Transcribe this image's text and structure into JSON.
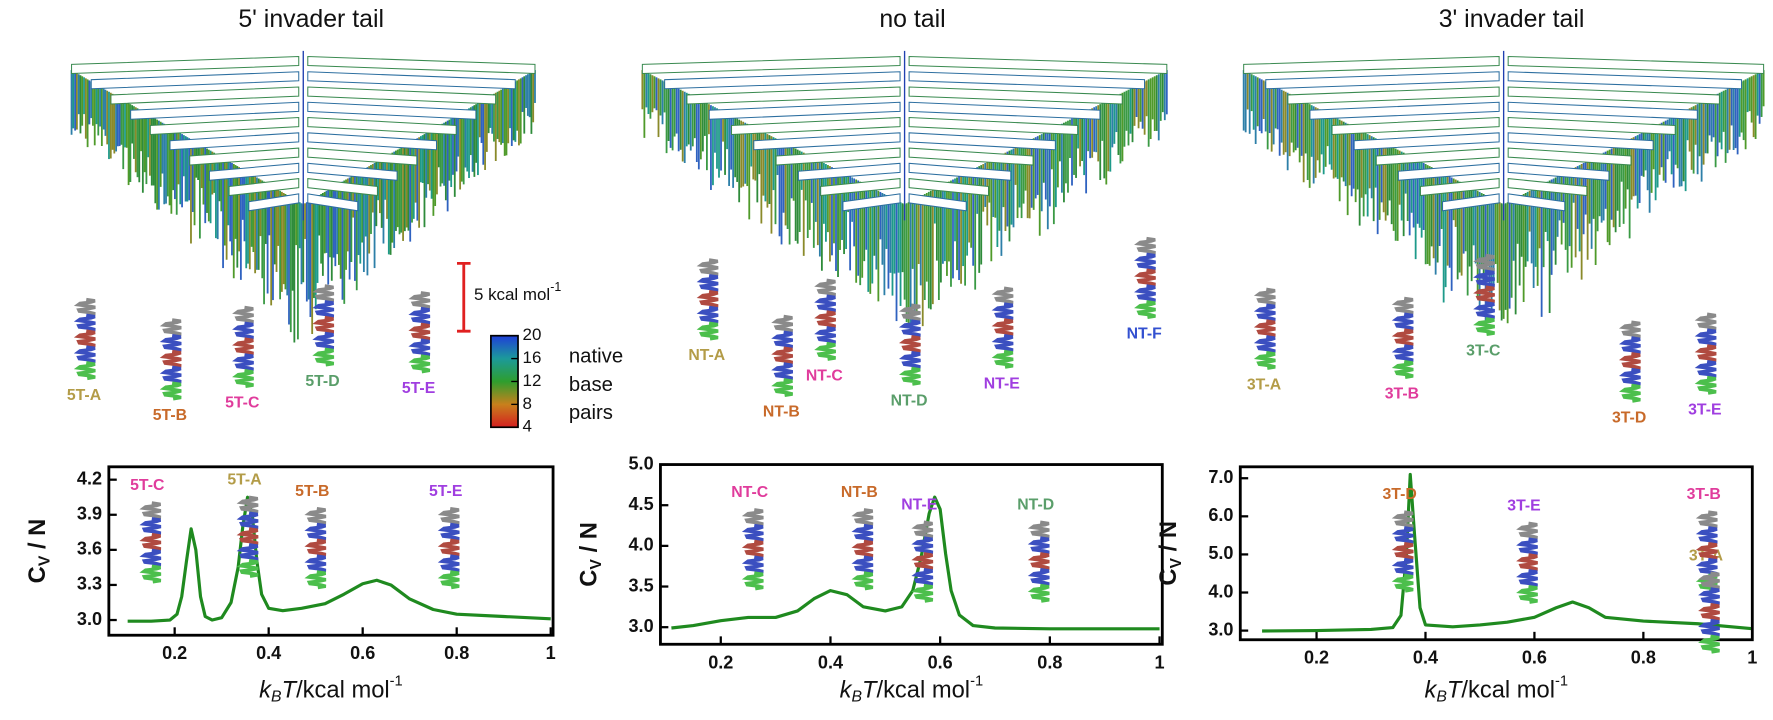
{
  "chart_data": [
    {
      "type": "line",
      "title": "5' invader tail",
      "color": "#1f8a1f",
      "x": [
        0.1,
        0.15,
        0.19,
        0.205,
        0.215,
        0.225,
        0.235,
        0.245,
        0.255,
        0.265,
        0.28,
        0.3,
        0.32,
        0.335,
        0.345,
        0.355,
        0.365,
        0.375,
        0.385,
        0.4,
        0.43,
        0.47,
        0.52,
        0.56,
        0.6,
        0.63,
        0.66,
        0.7,
        0.75,
        0.8,
        0.9,
        1.0
      ],
      "values": [
        2.99,
        2.99,
        3.0,
        3.05,
        3.2,
        3.5,
        3.78,
        3.6,
        3.2,
        3.03,
        3.0,
        3.02,
        3.15,
        3.45,
        3.8,
        4.05,
        3.9,
        3.5,
        3.22,
        3.1,
        3.08,
        3.1,
        3.14,
        3.22,
        3.31,
        3.34,
        3.3,
        3.18,
        3.09,
        3.05,
        3.03,
        3.01
      ],
      "xlim": [
        0.06,
        1.005
      ],
      "ylim": [
        2.87,
        4.31
      ],
      "xticks": [
        0.2,
        0.4,
        0.6,
        0.8,
        1
      ],
      "yticks": [
        {
          "value": 3.0,
          "label": "3.0"
        },
        3.3,
        3.6,
        3.9,
        4.2
      ],
      "x_label": [
        "k",
        "B",
        "T",
        "/kcal mol",
        "-1"
      ],
      "y_label": [
        "C",
        "V",
        " / N"
      ],
      "annotations": [
        {
          "text": "5T-C",
          "color": "#e03c9c"
        },
        {
          "text": "5T-A",
          "color": "#b39c48"
        },
        {
          "text": "5T-B",
          "color": "#c86a2a"
        },
        {
          "text": "5T-E",
          "color": "#a03ee0"
        }
      ],
      "structures": [
        {
          "text": "5T-A",
          "color": "#b39c48"
        },
        {
          "text": "5T-B",
          "color": "#c86a2a"
        },
        {
          "text": "5T-C",
          "color": "#e03c9c"
        },
        {
          "text": "5T-D",
          "color": "#5a9e6a"
        },
        {
          "text": "5T-E",
          "color": "#a03ee0"
        }
      ]
    },
    {
      "type": "line",
      "title": "no tail",
      "color": "#1f8a1f",
      "x": [
        0.11,
        0.15,
        0.2,
        0.25,
        0.3,
        0.34,
        0.37,
        0.4,
        0.43,
        0.46,
        0.5,
        0.53,
        0.55,
        0.565,
        0.58,
        0.59,
        0.6,
        0.61,
        0.62,
        0.635,
        0.66,
        0.7,
        0.8,
        1.0
      ],
      "values": [
        2.99,
        3.02,
        3.08,
        3.12,
        3.12,
        3.2,
        3.35,
        3.45,
        3.4,
        3.25,
        3.2,
        3.25,
        3.45,
        3.85,
        4.4,
        4.6,
        4.45,
        3.9,
        3.45,
        3.15,
        3.02,
        2.99,
        2.98,
        2.98
      ],
      "xlim": [
        0.09,
        1.005
      ],
      "ylim": [
        2.79,
        5.0
      ],
      "xticks": [
        0.2,
        0.4,
        0.6,
        0.8,
        1
      ],
      "yticks": [
        {
          "value": 3.0,
          "label": "3.0"
        },
        3.5,
        {
          "value": 4.0,
          "label": "4.0"
        },
        4.5,
        {
          "value": 5.0,
          "label": "5.0"
        }
      ],
      "x_label": [
        "k",
        "B",
        "T",
        "/kcal mol",
        "-1"
      ],
      "y_label": [
        "C",
        "V",
        " / N"
      ],
      "annotations": [
        {
          "text": "NT-C",
          "color": "#e03c9c"
        },
        {
          "text": "NT-B",
          "color": "#c86a2a"
        },
        {
          "text": "NT-E",
          "color": "#a03ee0"
        },
        {
          "text": "NT-D",
          "color": "#5a9e6a"
        }
      ],
      "structures": [
        {
          "text": "NT-A",
          "color": "#b39c48"
        },
        {
          "text": "NT-B",
          "color": "#c86a2a"
        },
        {
          "text": "NT-C",
          "color": "#e03c9c"
        },
        {
          "text": "NT-D",
          "color": "#5a9e6a"
        },
        {
          "text": "NT-E",
          "color": "#a03ee0"
        },
        {
          "text": "NT-F",
          "color": "#3350d0"
        }
      ]
    },
    {
      "type": "line",
      "title": "3' invader tail",
      "color": "#1f8a1f",
      "x": [
        0.1,
        0.2,
        0.3,
        0.34,
        0.355,
        0.365,
        0.372,
        0.38,
        0.39,
        0.4,
        0.45,
        0.5,
        0.55,
        0.6,
        0.64,
        0.67,
        0.7,
        0.73,
        0.8,
        0.9,
        1.0
      ],
      "values": [
        2.99,
        3.0,
        3.03,
        3.08,
        3.4,
        5.0,
        7.1,
        5.5,
        3.6,
        3.15,
        3.1,
        3.15,
        3.22,
        3.35,
        3.6,
        3.75,
        3.6,
        3.35,
        3.25,
        3.18,
        3.05
      ],
      "xlim": [
        0.06,
        1.0
      ],
      "ylim": [
        2.76,
        7.3
      ],
      "xticks": [
        0.2,
        0.4,
        0.6,
        0.8,
        1
      ],
      "yticks": [
        {
          "value": 3.0,
          "label": "3.0"
        },
        {
          "value": 4.0,
          "label": "4.0"
        },
        {
          "value": 5.0,
          "label": "5.0"
        },
        {
          "value": 6.0,
          "label": "6.0"
        },
        {
          "value": 7.0,
          "label": "7.0"
        }
      ],
      "x_label": [
        "k",
        "B",
        "T",
        "/kcal mol",
        "-1"
      ],
      "y_label": [
        "C",
        "V",
        " / N"
      ],
      "annotations": [
        {
          "text": "3T-D",
          "color": "#c86a2a"
        },
        {
          "text": "3T-E",
          "color": "#a03ee0"
        },
        {
          "text": "3T-B",
          "color": "#e03c9c"
        },
        {
          "text": "3T-A",
          "color": "#b39c48"
        }
      ],
      "structures": [
        {
          "text": "3T-A",
          "color": "#b39c48"
        },
        {
          "text": "3T-B",
          "color": "#e03c9c"
        },
        {
          "text": "3T-C",
          "color": "#5a9e6a"
        },
        {
          "text": "3T-D",
          "color": "#c86a2a"
        },
        {
          "text": "3T-E",
          "color": "#a03ee0"
        }
      ]
    }
  ],
  "scale_bar": [
    "5 kcal mol",
    "-1"
  ],
  "colorbar": {
    "lim": [
      4,
      20
    ],
    "ticks": [
      4,
      8,
      12,
      16,
      20
    ],
    "label": [
      "native",
      "base",
      "pairs"
    ],
    "colors": [
      "#d42020",
      "#c8801c",
      "#2e9e2e",
      "#1c9a9a",
      "#1f3fd8"
    ]
  }
}
